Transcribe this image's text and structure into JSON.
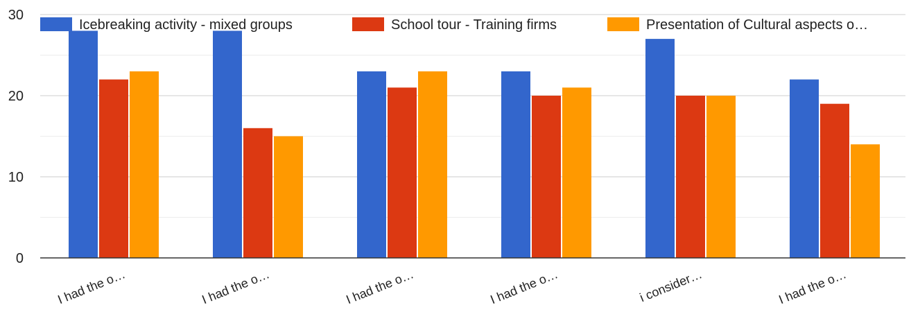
{
  "chart_data": {
    "type": "bar",
    "categories": [
      "I had the o…",
      "I had the o…",
      "I had the o…",
      "I had the o…",
      "i consider…",
      "I had the o…"
    ],
    "series": [
      {
        "name": "Icebreaking activity - mixed groups",
        "color": "#3366cc",
        "values": [
          28,
          28,
          23,
          23,
          27,
          22
        ]
      },
      {
        "name": "School tour - Training firms",
        "color": "#dc3912",
        "values": [
          22,
          16,
          21,
          20,
          20,
          19
        ]
      },
      {
        "name": "Presentation of Cultural aspects o…",
        "color": "#ff9900",
        "values": [
          23,
          15,
          23,
          21,
          20,
          14
        ]
      }
    ],
    "ylim": [
      0,
      30
    ],
    "yticks": [
      0,
      10,
      20,
      30
    ],
    "grid": true,
    "legend": "top"
  }
}
